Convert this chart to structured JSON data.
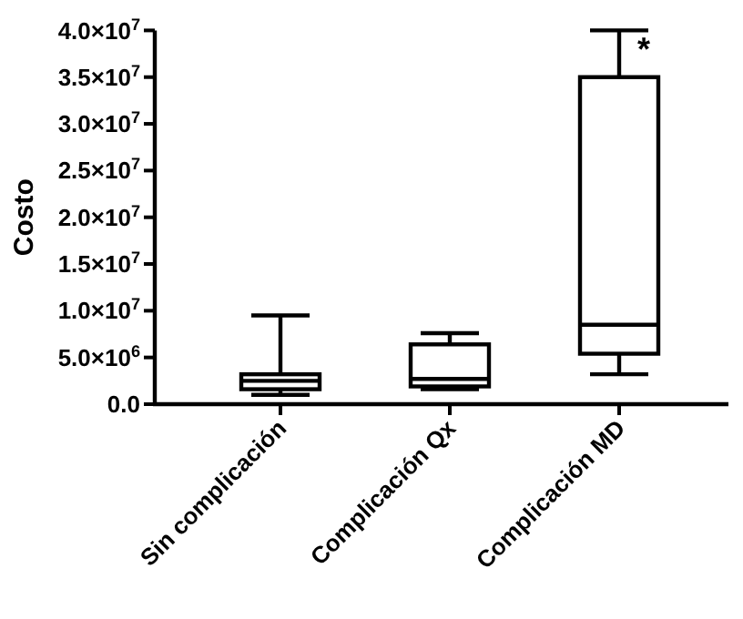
{
  "chart_data": {
    "type": "box",
    "ylabel": "Costo",
    "categories": [
      "Sin complicación",
      "Complicación Qx",
      "Complicación MD"
    ],
    "boxes": [
      {
        "low": 1000000,
        "q1": 1600000,
        "median": 2500000,
        "q3": 3200000,
        "high": 9500000
      },
      {
        "low": 1600000,
        "q1": 1900000,
        "median": 2700000,
        "q3": 6400000,
        "high": 7600000
      },
      {
        "low": 3200000,
        "q1": 5400000,
        "median": 8500000,
        "q3": 35000000,
        "high": 40000000
      }
    ],
    "color": "#000000",
    "ylim": [
      0,
      40000000
    ],
    "yticks": [
      {
        "value": 0,
        "label": "0.0"
      },
      {
        "value": 5000000,
        "label": "5.0×10$^{6}$"
      },
      {
        "value": 10000000,
        "label": "1.0×10$^{7}$"
      },
      {
        "value": 15000000,
        "label": "1.5×10$^{7}$"
      },
      {
        "value": 20000000,
        "label": "2.0×10$^{7}$"
      },
      {
        "value": 25000000,
        "label": "2.5×10$^{7}$"
      },
      {
        "value": 30000000,
        "label": "3.0×10$^{7}$"
      },
      {
        "value": 35000000,
        "label": "3.5×10$^{7}$"
      },
      {
        "value": 40000000,
        "label": "4.0×10$^{7}$"
      }
    ],
    "annotations": [
      {
        "text": "*",
        "x": "Complicación MD",
        "y": 40000000
      }
    ],
    "grid": false
  }
}
